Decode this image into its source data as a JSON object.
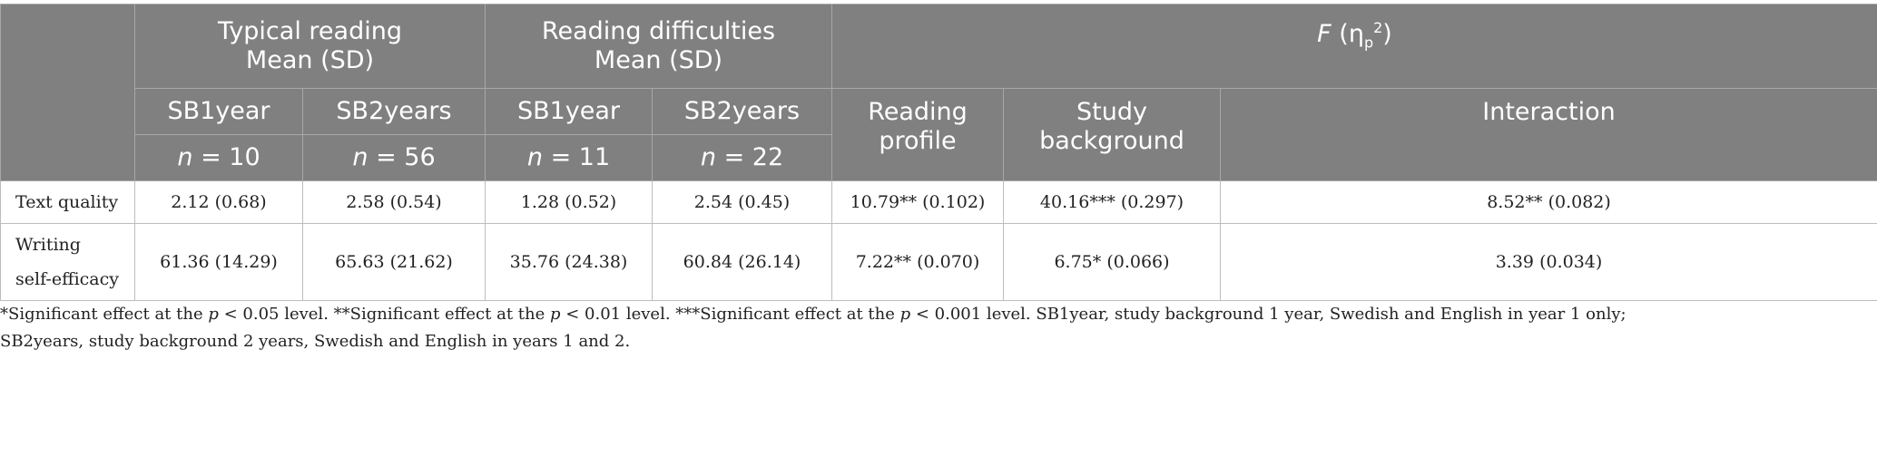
{
  "header": {
    "group_typical": "Typical reading",
    "group_typical_sub": "Mean (SD)",
    "group_difficulties": "Reading difficulties",
    "group_difficulties_sub": "Mean (SD)",
    "group_f_letter": "F",
    "group_f_eta": "η",
    "group_f_sub": "p",
    "group_f_sup": "2",
    "sb1": "SB1year",
    "sb2": "SB2years",
    "n_label": "n",
    "n_values": [
      "= 10",
      "= 56",
      "= 11",
      "= 22"
    ],
    "reading_profile": "Reading profile",
    "study_background": "Study background",
    "interaction": "Interaction"
  },
  "rows": [
    {
      "label": "Text quality",
      "values": [
        "2.12 (0.68)",
        "2.58 (0.54)",
        "1.28 (0.52)",
        "2.54 (0.45)",
        "10.79** (0.102)",
        "40.16*** (0.297)",
        "8.52** (0.082)"
      ]
    },
    {
      "label_line1": "Writing",
      "label_line2": "self-efficacy",
      "values": [
        "61.36 (14.29)",
        "65.63 (21.62)",
        "35.76 (24.38)",
        "60.84 (26.14)",
        "7.22** (0.070)",
        "6.75* (0.066)",
        "3.39 (0.034)"
      ]
    }
  ],
  "footnote": {
    "seg1": "*Significant effect at the ",
    "p": "p",
    "seg2": " < 0.05 level. **Significant effect at the ",
    "seg3": " < 0.01 level. ***Significant effect at the ",
    "seg4": " < 0.001 level. SB1year, study background 1 year, Swedish and English in year 1 only;",
    "line2": "SB2years, study background 2 years, Swedish and English in years 1 and 2."
  },
  "colors": {
    "header_bg": "#808080",
    "header_text": "#ffffff",
    "body_text": "#222222"
  }
}
